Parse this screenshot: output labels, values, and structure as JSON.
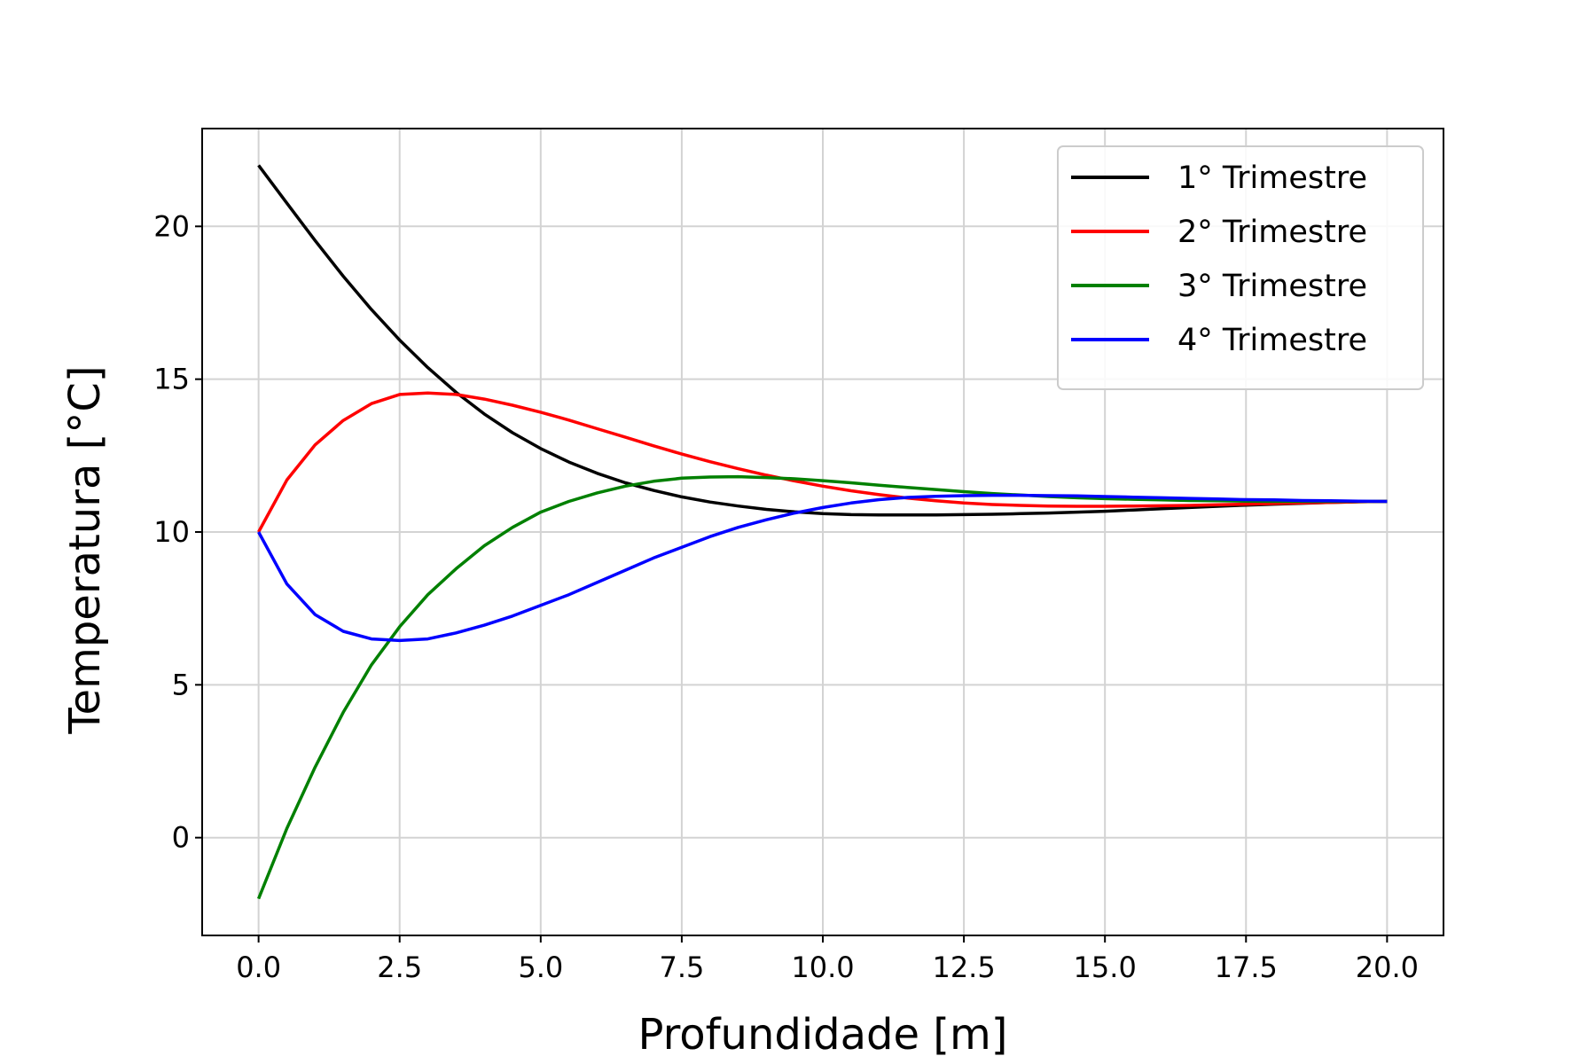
{
  "chart_data": {
    "type": "line",
    "title": "",
    "xlabel": "Profundidade [m]",
    "ylabel": "Temperatura [°C]",
    "xlim": [
      -1.0,
      21.0
    ],
    "ylim": [
      -3.2,
      23.2
    ],
    "xticks": [
      0,
      2.5,
      5,
      7.5,
      10,
      12.5,
      15,
      17.5,
      20
    ],
    "xtick_labels": [
      "0.0",
      "2.5",
      "5.0",
      "7.5",
      "10.0",
      "12.5",
      "15.0",
      "17.5",
      "20.0"
    ],
    "yticks": [
      0,
      5,
      10,
      15,
      20
    ],
    "ytick_labels": [
      "0",
      "5",
      "10",
      "15",
      "20"
    ],
    "grid": true,
    "legend_position": "top-right",
    "x": [
      0,
      0.5,
      1,
      1.5,
      2,
      2.5,
      3,
      3.5,
      4,
      4.5,
      5,
      5.5,
      6,
      6.5,
      7,
      7.5,
      8,
      8.5,
      9,
      9.5,
      10,
      10.5,
      11,
      11.5,
      12,
      12.5,
      13,
      13.5,
      14,
      14.5,
      15,
      15.5,
      16,
      16.5,
      17,
      17.5,
      18,
      18.5,
      19,
      19.5,
      20
    ],
    "series": [
      {
        "name": "1° Trimestre",
        "color": "#000000",
        "values": [
          22.0,
          20.76,
          19.54,
          18.37,
          17.28,
          16.28,
          15.38,
          14.57,
          13.86,
          13.25,
          12.73,
          12.29,
          11.92,
          11.61,
          11.36,
          11.15,
          10.98,
          10.85,
          10.74,
          10.66,
          10.6,
          10.57,
          10.56,
          10.56,
          10.56,
          10.57,
          10.58,
          10.6,
          10.62,
          10.65,
          10.68,
          10.72,
          10.76,
          10.8,
          10.84,
          10.88,
          10.91,
          10.94,
          10.97,
          10.99,
          11.0
        ]
      },
      {
        "name": "2° Trimestre",
        "color": "#ff0000",
        "values": [
          10.0,
          11.7,
          12.85,
          13.65,
          14.2,
          14.5,
          14.55,
          14.5,
          14.35,
          14.15,
          13.92,
          13.66,
          13.38,
          13.1,
          12.82,
          12.55,
          12.3,
          12.07,
          11.86,
          11.67,
          11.5,
          11.35,
          11.22,
          11.11,
          11.02,
          10.95,
          10.9,
          10.87,
          10.85,
          10.84,
          10.84,
          10.85,
          10.86,
          10.87,
          10.89,
          10.91,
          10.93,
          10.95,
          10.97,
          10.99,
          11.0
        ]
      },
      {
        "name": "3° Trimestre",
        "color": "#008000",
        "values": [
          -2.0,
          0.3,
          2.3,
          4.1,
          5.65,
          6.9,
          7.95,
          8.8,
          9.55,
          10.15,
          10.65,
          11.0,
          11.28,
          11.5,
          11.66,
          11.76,
          11.8,
          11.81,
          11.78,
          11.74,
          11.68,
          11.61,
          11.53,
          11.46,
          11.39,
          11.32,
          11.26,
          11.21,
          11.16,
          11.12,
          11.09,
          11.07,
          11.05,
          11.03,
          11.02,
          11.01,
          11.0,
          11.0,
          11.0,
          11.0,
          11.0
        ]
      },
      {
        "name": "4° Trimestre",
        "color": "#0000ff",
        "values": [
          10.0,
          8.3,
          7.3,
          6.75,
          6.5,
          6.45,
          6.5,
          6.7,
          6.95,
          7.25,
          7.6,
          7.95,
          8.35,
          8.75,
          9.15,
          9.5,
          9.85,
          10.15,
          10.4,
          10.62,
          10.8,
          10.95,
          11.06,
          11.13,
          11.17,
          11.19,
          11.2,
          11.2,
          11.19,
          11.18,
          11.16,
          11.14,
          11.12,
          11.1,
          11.08,
          11.06,
          11.05,
          11.03,
          11.02,
          11.01,
          11.0
        ]
      }
    ]
  }
}
